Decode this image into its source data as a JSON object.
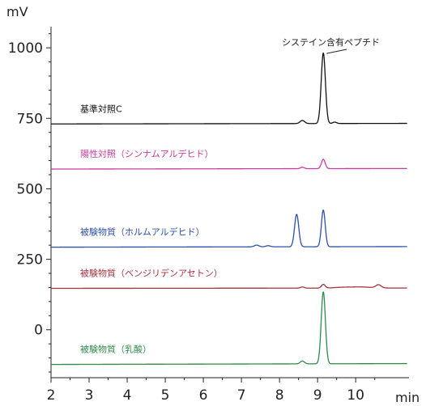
{
  "chart_data": {
    "type": "line",
    "title": "",
    "xlabel": "min",
    "ylabel": "mV",
    "xlim": [
      2,
      11.4
    ],
    "ylim": [
      -170,
      1075
    ],
    "xticks": [
      2,
      3,
      4,
      5,
      6,
      7,
      8,
      9,
      10
    ],
    "yticks": [
      0,
      250,
      500,
      750,
      1000
    ],
    "grid": false,
    "legend": "none",
    "annotation": {
      "text": "システイン含有ペプチド",
      "x": 9.15,
      "y": 980
    },
    "series": [
      {
        "name": "基準対照C",
        "color": "#111111",
        "baseline": 730,
        "drift": 2,
        "peaks": [
          {
            "x": 8.6,
            "height": 11,
            "width": 0.06
          },
          {
            "x": 9.15,
            "height": 250,
            "width": 0.055
          },
          {
            "x": 9.45,
            "height": 5,
            "width": 0.05
          }
        ]
      },
      {
        "name": "陽性対照（シンナムアルデヒド）",
        "color": "#cc3ba0",
        "baseline": 570,
        "drift": 2,
        "peaks": [
          {
            "x": 8.6,
            "height": 5,
            "width": 0.05
          },
          {
            "x": 9.15,
            "height": 33,
            "width": 0.05
          }
        ]
      },
      {
        "name": "被験物質（ホルムアルデヒド）",
        "color": "#2d50a8",
        "baseline": 293,
        "drift": 2,
        "peaks": [
          {
            "x": 7.4,
            "height": 6,
            "width": 0.06
          },
          {
            "x": 7.7,
            "height": 4,
            "width": 0.06
          },
          {
            "x": 8.45,
            "height": 115,
            "width": 0.055
          },
          {
            "x": 9.15,
            "height": 130,
            "width": 0.05
          }
        ]
      },
      {
        "name": "被験物質（ベンジリデンアセトン）",
        "color": "#a8323a",
        "baseline": 147,
        "drift": 1,
        "peaks": [
          {
            "x": 8.6,
            "height": 4,
            "width": 0.05
          },
          {
            "x": 9.15,
            "height": 13,
            "width": 0.05
          },
          {
            "x": 9.6,
            "height": 2,
            "width": 0.2
          },
          {
            "x": 10.1,
            "height": 4,
            "width": 0.3
          },
          {
            "x": 10.6,
            "height": 11,
            "width": 0.07
          }
        ]
      },
      {
        "name": "被験物質（乳酸）",
        "color": "#2e8b4a",
        "baseline": -123,
        "drift": 3,
        "peaks": [
          {
            "x": 8.6,
            "height": 10,
            "width": 0.055
          },
          {
            "x": 9.15,
            "height": 255,
            "width": 0.055
          }
        ]
      }
    ]
  }
}
